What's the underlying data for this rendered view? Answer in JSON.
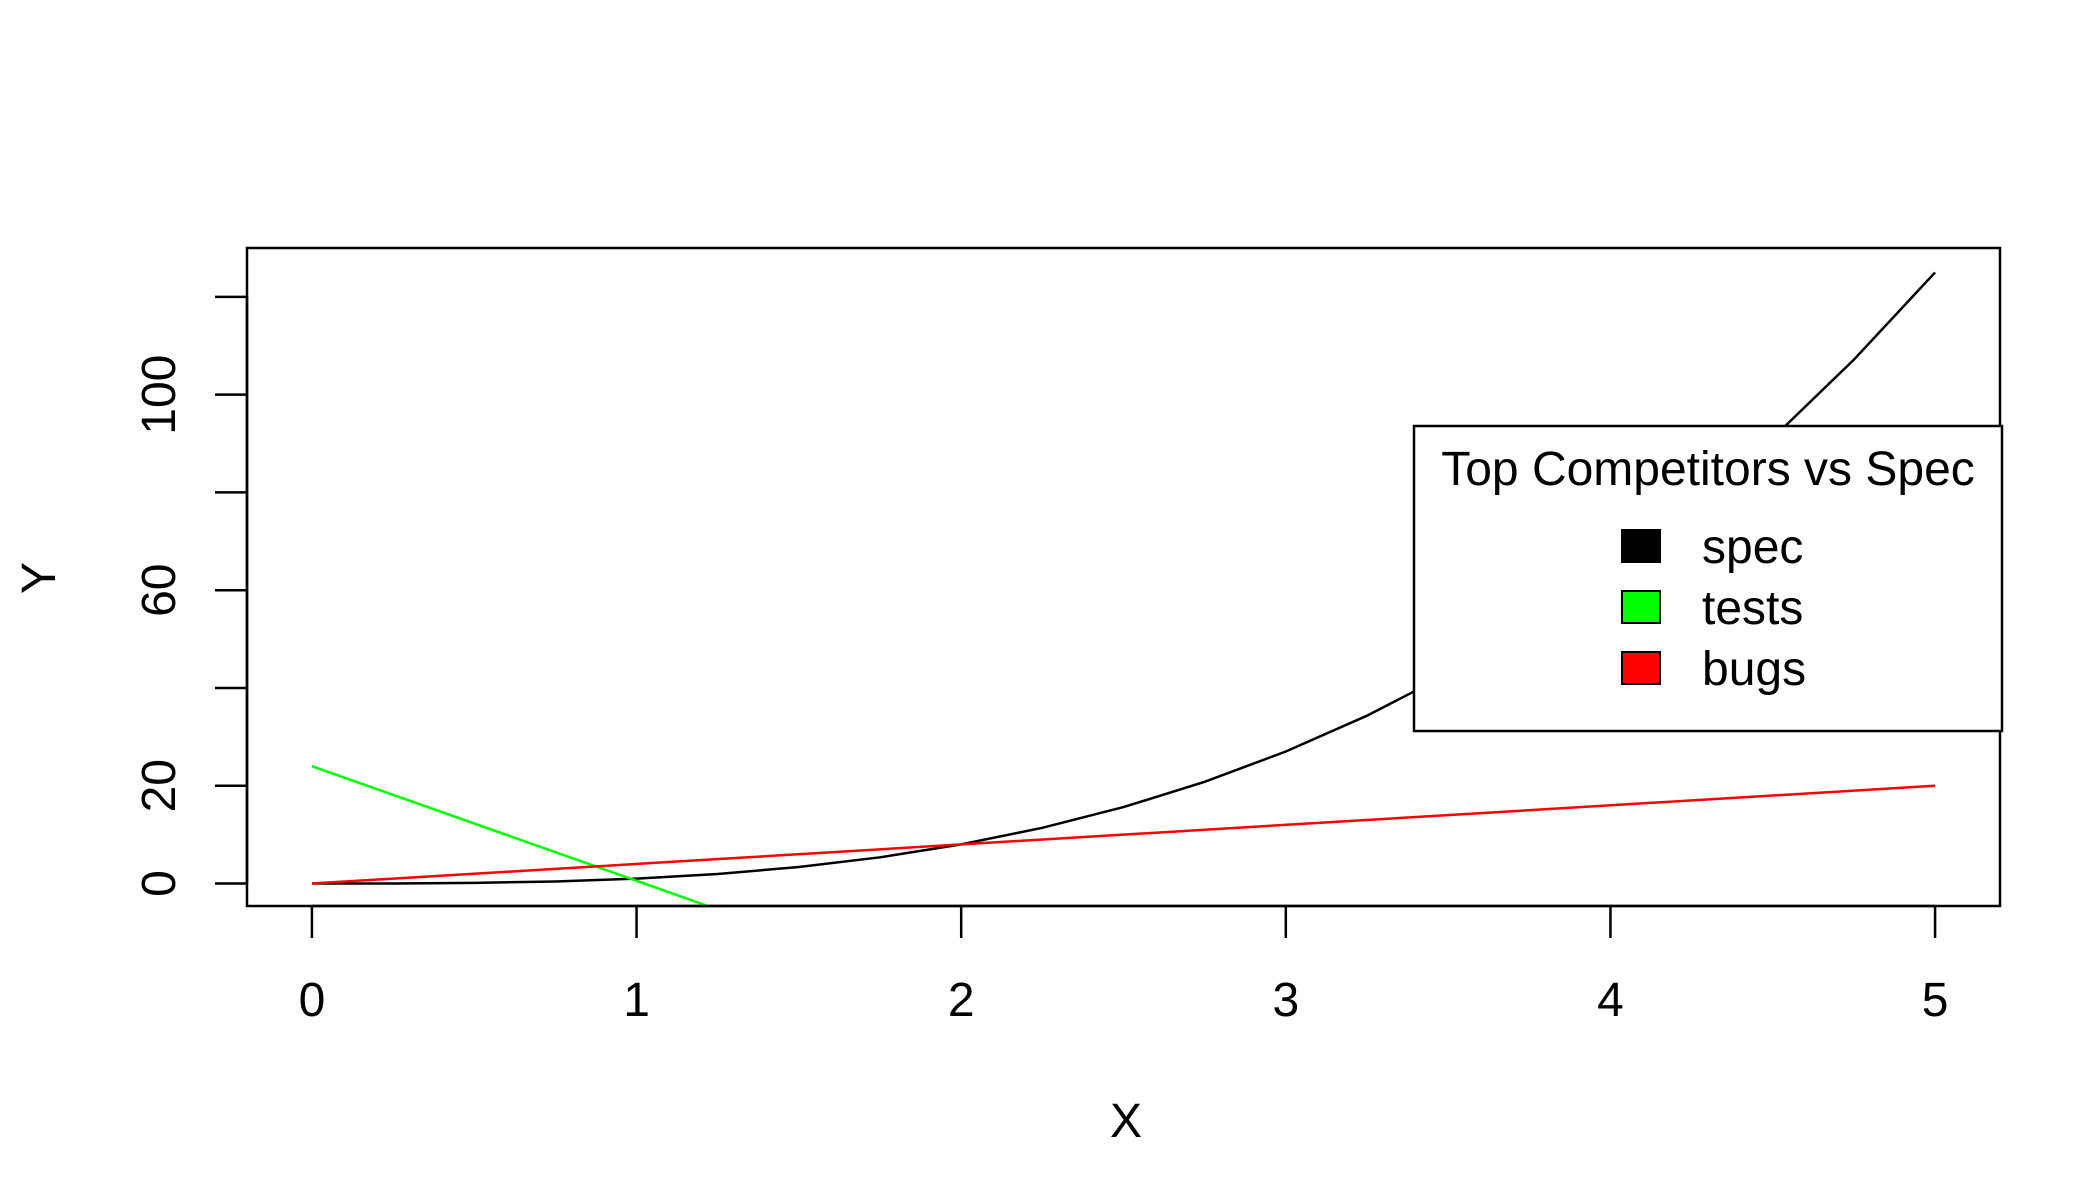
{
  "chart_data": {
    "type": "line",
    "title": "",
    "xlabel": "X",
    "ylabel": "Y",
    "xlim": [
      -0.2,
      5.2
    ],
    "ylim": [
      -4.6,
      130
    ],
    "xticks": [
      0,
      1,
      2,
      3,
      4,
      5
    ],
    "yticks": [
      0,
      20,
      40,
      60,
      80,
      100,
      120
    ],
    "ytick_labels": [
      "0",
      "20",
      "",
      "60",
      "",
      "100",
      ""
    ],
    "grid": false,
    "legend": {
      "title": "Top Competitors vs Spec",
      "position": "right",
      "entries": [
        {
          "label": "spec",
          "color": "#000000"
        },
        {
          "label": "tests",
          "color": "#00ff00"
        },
        {
          "label": "bugs",
          "color": "#ff0000"
        }
      ]
    },
    "series": [
      {
        "name": "spec",
        "color": "#000000",
        "x": [
          0,
          0.25,
          0.5,
          0.75,
          1,
          1.25,
          1.5,
          1.75,
          2,
          2.25,
          2.5,
          2.75,
          3,
          3.25,
          3.5,
          3.75,
          4,
          4.25,
          4.5,
          4.75,
          5
        ],
        "y": [
          0,
          0.0156,
          0.125,
          0.422,
          1,
          1.953,
          3.375,
          5.359,
          8,
          11.39,
          15.63,
          20.8,
          27,
          34.33,
          42.88,
          52.73,
          64,
          76.77,
          91.13,
          107.17,
          125
        ]
      },
      {
        "name": "tests",
        "color": "#00ff00",
        "x": [
          0,
          1.22
        ],
        "y": [
          24,
          -4.6
        ]
      },
      {
        "name": "bugs",
        "color": "#ff0000",
        "x": [
          0,
          5
        ],
        "y": [
          0,
          20
        ]
      }
    ]
  }
}
